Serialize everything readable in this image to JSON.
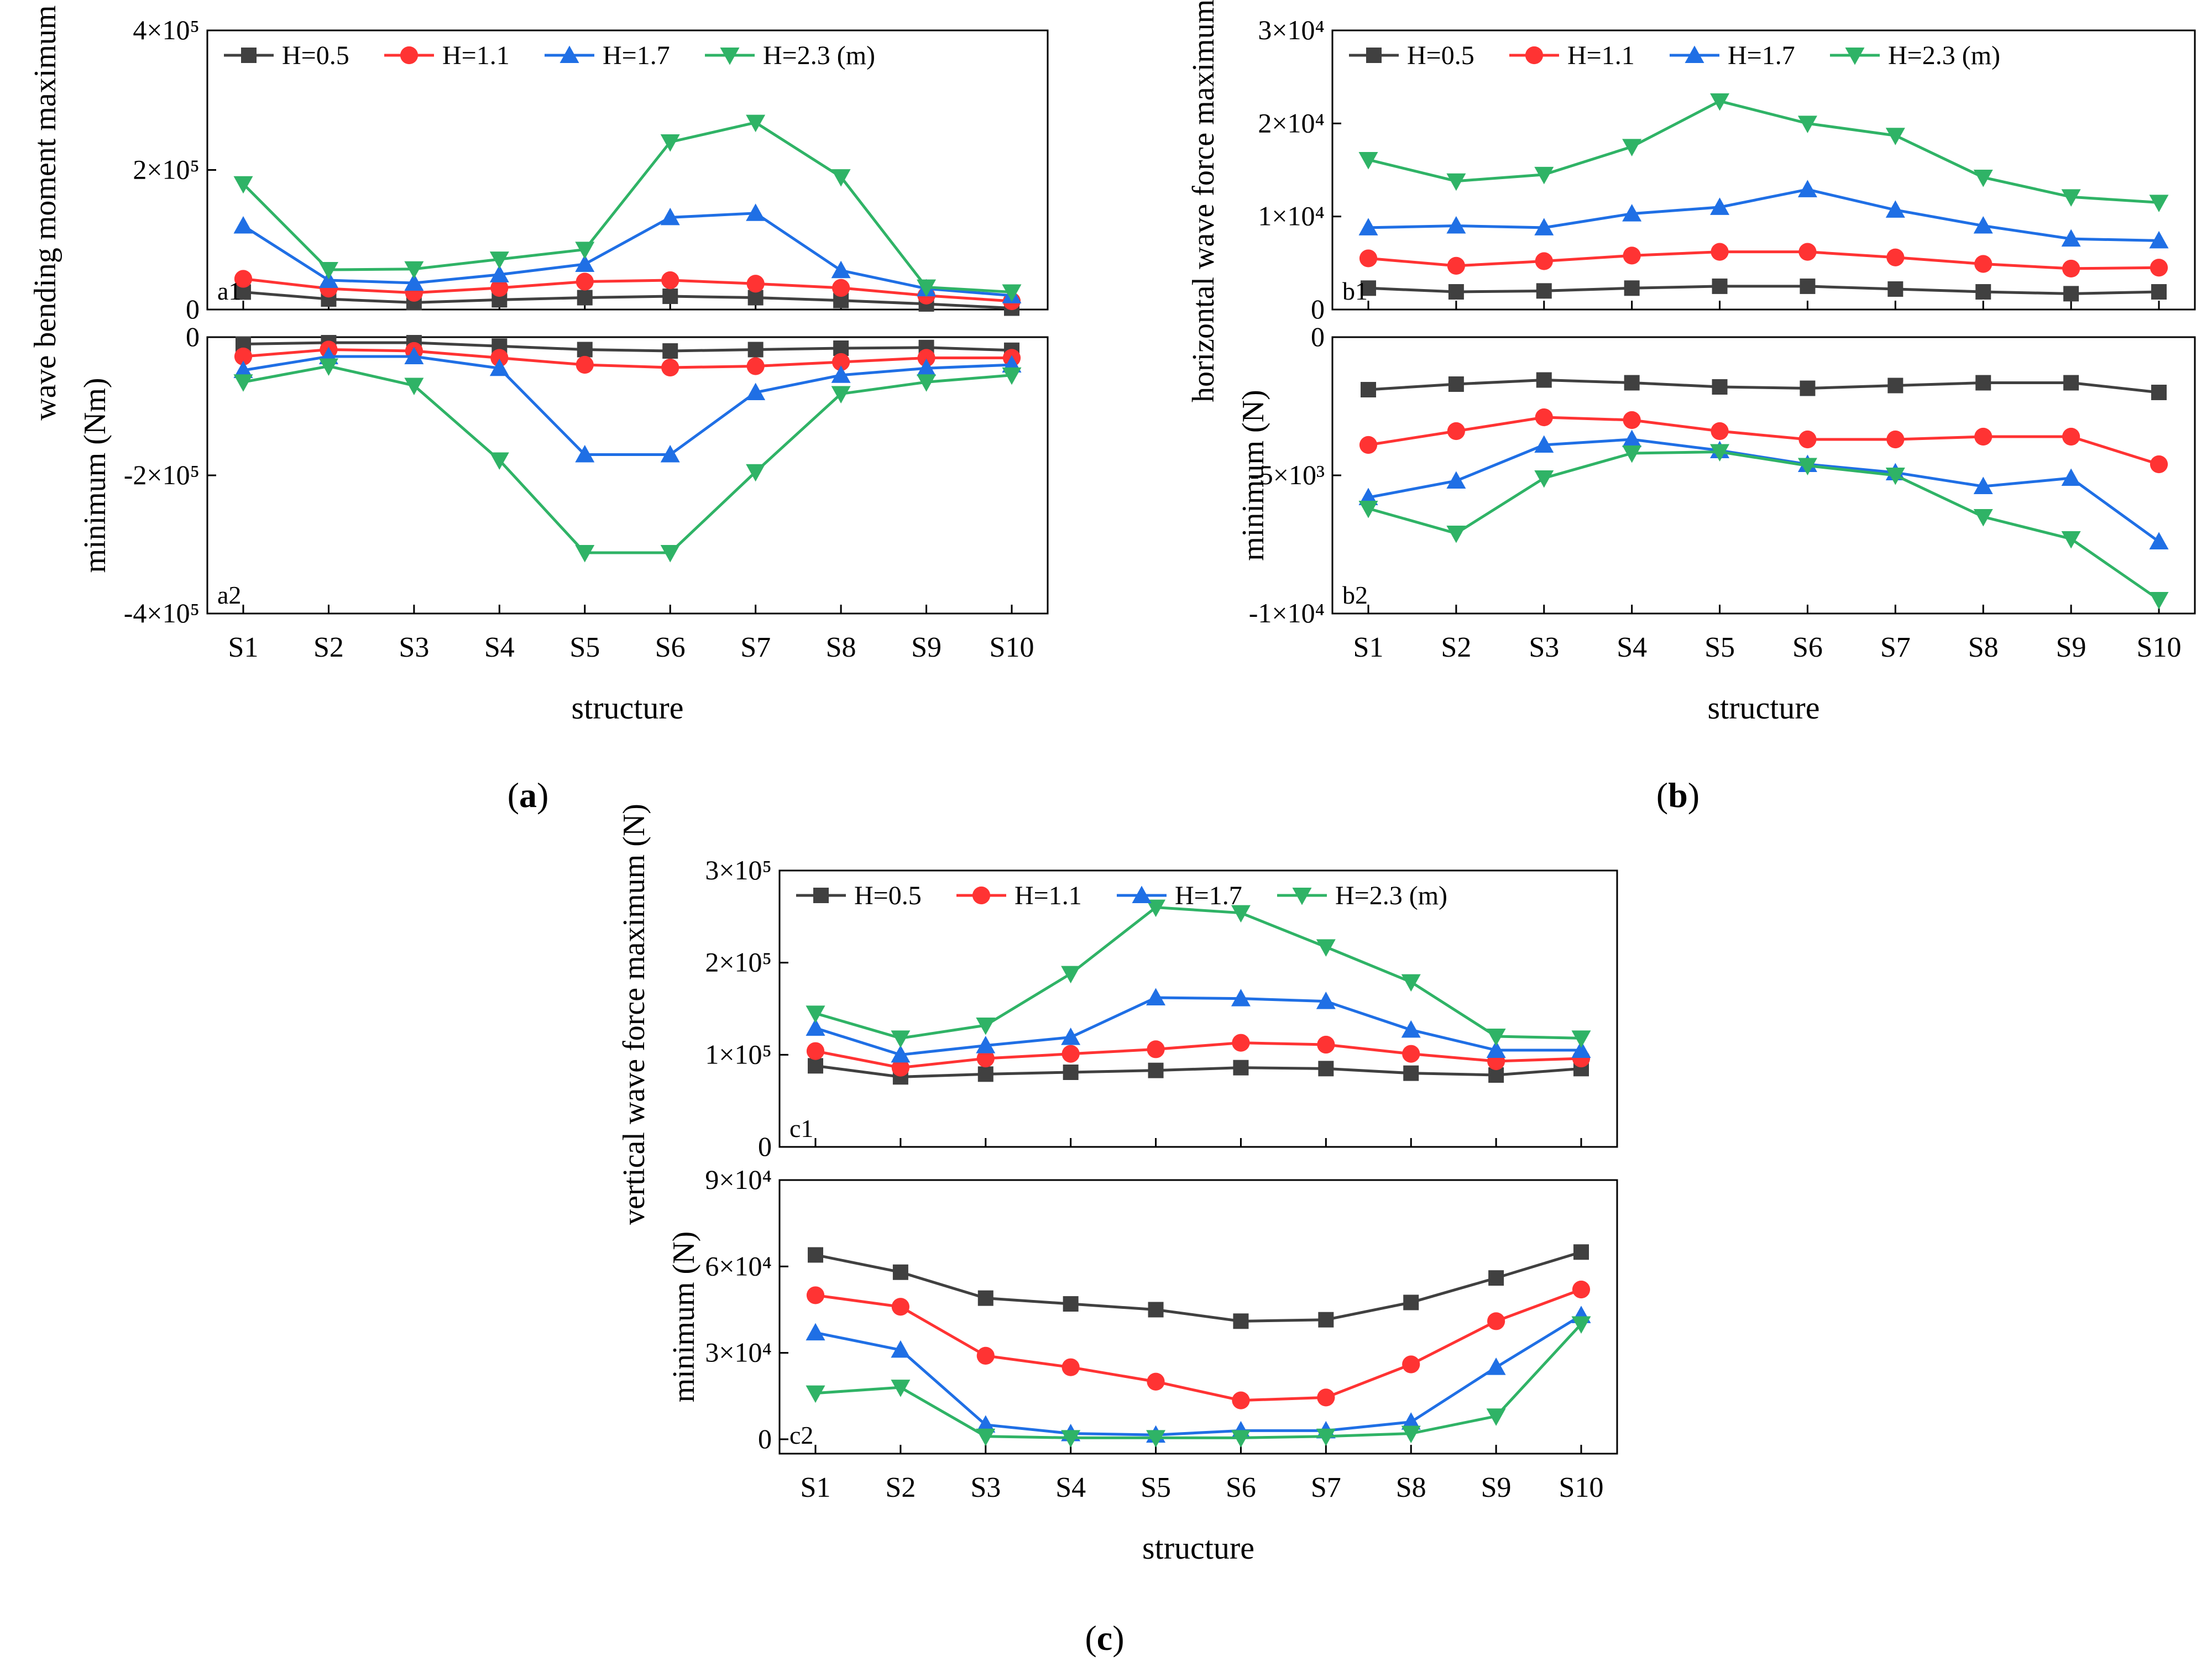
{
  "categories": [
    "S1",
    "S2",
    "S3",
    "S4",
    "S5",
    "S6",
    "S7",
    "S8",
    "S9",
    "S10"
  ],
  "legend": [
    "H=0.5",
    "H=1.1",
    "H=1.7",
    "H=2.3 (m)"
  ],
  "series_styles": [
    {
      "name": "H=0.5",
      "color": "#404040",
      "marker": "square"
    },
    {
      "name": "H=1.1",
      "color": "#ff3333",
      "marker": "circle"
    },
    {
      "name": "H=1.7",
      "color": "#1f6fe5",
      "marker": "triangle-up"
    },
    {
      "name": "H=2.3 (m)",
      "color": "#2fb366",
      "marker": "triangle-down"
    }
  ],
  "captions": {
    "a": "a",
    "b": "b",
    "c": "c"
  },
  "chart_data": [
    {
      "id": "a",
      "type": "line",
      "xlabel": "structure",
      "ylabel_upper": "wave bending moment maximum (Nm)",
      "ylabel_lower": "minimum (Nm)",
      "panels": [
        {
          "label": "a1",
          "ylim": [
            0,
            400000
          ],
          "ticks": [
            0,
            200000,
            400000
          ],
          "tick_labels": [
            "0",
            "2×10⁵",
            "4×10⁵"
          ],
          "legend": true,
          "series": [
            {
              "name": "H=0.5",
              "values": [
                25000,
                15000,
                10000,
                14000,
                17000,
                19000,
                17000,
                13000,
                8000,
                2000
              ]
            },
            {
              "name": "H=1.1",
              "values": [
                44000,
                30000,
                24000,
                31000,
                40000,
                42000,
                37000,
                31000,
                20000,
                12000
              ]
            },
            {
              "name": "H=1.7",
              "values": [
                120000,
                42000,
                38000,
                50000,
                65000,
                132000,
                138000,
                56000,
                30000,
                20000
              ]
            },
            {
              "name": "H=2.3 (m)",
              "values": [
                180000,
                57000,
                58000,
                72000,
                86000,
                240000,
                268000,
                190000,
                32000,
                25000
              ]
            }
          ]
        },
        {
          "label": "a2",
          "ylim": [
            -400000,
            0
          ],
          "ticks": [
            -400000,
            -200000,
            0
          ],
          "tick_labels": [
            "-4×10⁵",
            "-2×10⁵",
            "0"
          ],
          "legend": false,
          "series": [
            {
              "name": "H=0.5",
              "values": [
                -10000,
                -8000,
                -8000,
                -13000,
                -18000,
                -20000,
                -18000,
                -16000,
                -15000,
                -19000
              ]
            },
            {
              "name": "H=1.1",
              "values": [
                -28000,
                -18000,
                -20000,
                -30000,
                -40000,
                -44000,
                -42000,
                -36000,
                -30000,
                -30000
              ]
            },
            {
              "name": "H=1.7",
              "values": [
                -48000,
                -28000,
                -28000,
                -45000,
                -170000,
                -170000,
                -80000,
                -55000,
                -45000,
                -40000
              ]
            },
            {
              "name": "H=2.3 (m)",
              "values": [
                -65000,
                -42000,
                -70000,
                -178000,
                -312000,
                -312000,
                -195000,
                -82000,
                -65000,
                -55000
              ]
            }
          ]
        }
      ]
    },
    {
      "id": "b",
      "type": "line",
      "xlabel": "structure",
      "ylabel_upper": "horizontal wave force maximum (N)",
      "ylabel_lower": "minimum (N)",
      "panels": [
        {
          "label": "b1",
          "ylim": [
            0,
            30000
          ],
          "ticks": [
            0,
            10000,
            20000,
            30000
          ],
          "tick_labels": [
            "0",
            "1×10⁴",
            "2×10⁴",
            "3×10⁴"
          ],
          "legend": true,
          "series": [
            {
              "name": "H=0.5",
              "values": [
                2300,
                1900,
                2000,
                2300,
                2500,
                2500,
                2200,
                1900,
                1700,
                1900
              ]
            },
            {
              "name": "H=1.1",
              "values": [
                5500,
                4700,
                5200,
                5800,
                6200,
                6200,
                5600,
                4900,
                4400,
                4500
              ]
            },
            {
              "name": "H=1.7",
              "values": [
                8800,
                9000,
                8800,
                10300,
                11000,
                12900,
                10700,
                9000,
                7600,
                7400
              ]
            },
            {
              "name": "H=2.3 (m)",
              "values": [
                16100,
                13800,
                14500,
                17500,
                22400,
                20000,
                18700,
                14200,
                12100,
                11500
              ]
            }
          ]
        },
        {
          "label": "b2",
          "ylim": [
            -10000,
            0
          ],
          "ticks": [
            -10000,
            -5000,
            0
          ],
          "tick_labels": [
            "-1×10⁴",
            "-5×10³",
            "0"
          ],
          "legend": false,
          "series": [
            {
              "name": "H=0.5",
              "values": [
                -1900,
                -1700,
                -1550,
                -1650,
                -1800,
                -1850,
                -1750,
                -1650,
                -1650,
                -2000
              ]
            },
            {
              "name": "H=1.1",
              "values": [
                -3900,
                -3400,
                -2900,
                -3000,
                -3400,
                -3700,
                -3700,
                -3600,
                -3600,
                -4600
              ]
            },
            {
              "name": "H=1.7",
              "values": [
                -5800,
                -5200,
                -3900,
                -3700,
                -4100,
                -4600,
                -4900,
                -5400,
                -5100,
                -7400
              ]
            },
            {
              "name": "H=2.3 (m)",
              "values": [
                -6200,
                -7100,
                -5100,
                -4200,
                -4150,
                -4650,
                -5000,
                -6500,
                -7300,
                -9500
              ]
            }
          ]
        }
      ]
    },
    {
      "id": "c",
      "type": "line",
      "xlabel": "structure",
      "ylabel_upper": "vertical wave force maximum (N)",
      "ylabel_lower": "minimum (N)",
      "panels": [
        {
          "label": "c1",
          "ylim": [
            0,
            300000
          ],
          "ticks": [
            0,
            100000,
            200000,
            300000
          ],
          "tick_labels": [
            "0",
            "1×10⁵",
            "2×10⁵",
            "3×10⁵"
          ],
          "legend": true,
          "series": [
            {
              "name": "H=0.5",
              "values": [
                88000,
                76000,
                79000,
                81000,
                83000,
                86000,
                85000,
                80000,
                78000,
                85000
              ]
            },
            {
              "name": "H=1.1",
              "values": [
                104000,
                86000,
                96000,
                101000,
                106000,
                113000,
                111000,
                101000,
                93000,
                96000
              ]
            },
            {
              "name": "H=1.7",
              "values": [
                129000,
                100000,
                110000,
                119000,
                162000,
                161000,
                158000,
                127000,
                105000,
                105000
              ]
            },
            {
              "name": "H=2.3 (m)",
              "values": [
                145000,
                118000,
                132000,
                188000,
                260000,
                254000,
                217000,
                179000,
                120000,
                118000
              ]
            }
          ]
        },
        {
          "label": "c2",
          "ylim": [
            -5000,
            90000
          ],
          "ticks": [
            0,
            30000,
            60000,
            90000
          ],
          "tick_labels": [
            "0",
            "3×10⁴",
            "6×10⁴",
            "9×10⁴"
          ],
          "legend": false,
          "series": [
            {
              "name": "H=0.5",
              "values": [
                64000,
                58000,
                49000,
                47000,
                45000,
                41000,
                41500,
                47500,
                56000,
                65000
              ]
            },
            {
              "name": "H=1.1",
              "values": [
                50000,
                46000,
                29000,
                25000,
                20000,
                13500,
                14500,
                26000,
                41000,
                52000
              ]
            },
            {
              "name": "H=1.7",
              "values": [
                37000,
                31000,
                5000,
                2000,
                1500,
                3000,
                3000,
                6000,
                25000,
                43000
              ]
            },
            {
              "name": "H=2.3 (m)",
              "values": [
                16000,
                18000,
                1000,
                500,
                500,
                500,
                1000,
                2000,
                8000,
                40000
              ]
            }
          ]
        }
      ]
    }
  ]
}
